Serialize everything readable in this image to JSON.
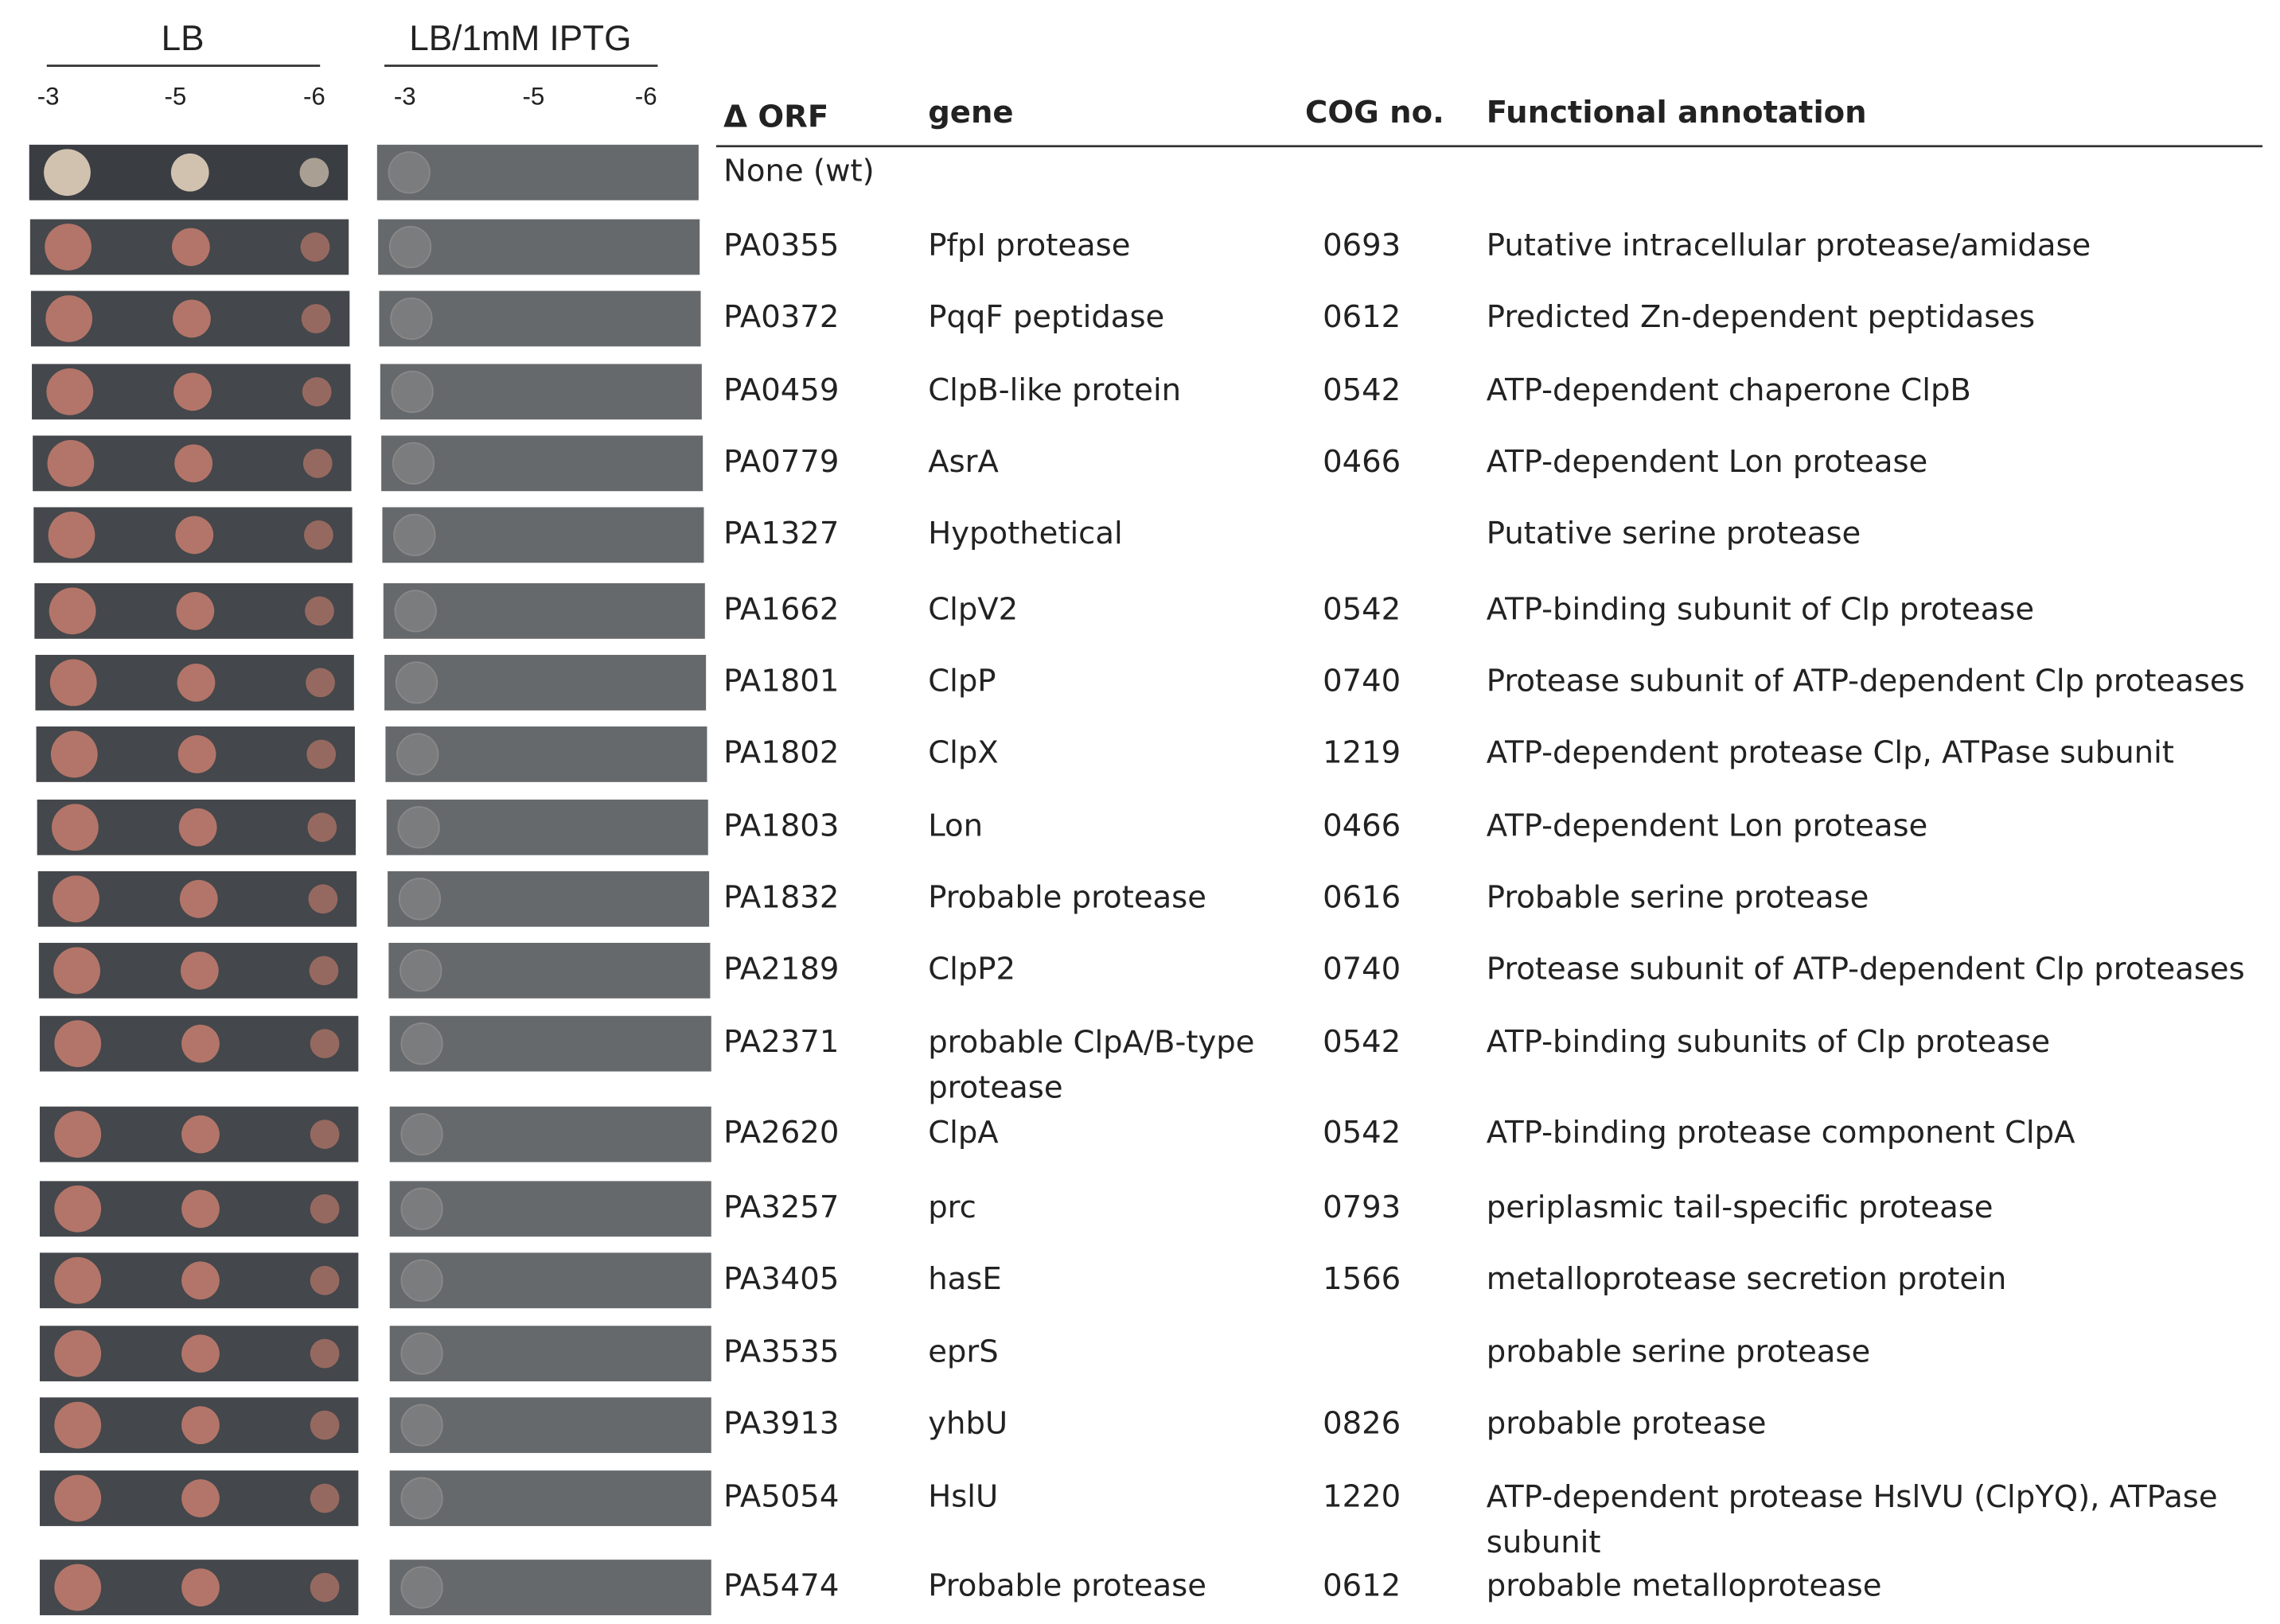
{
  "panels": {
    "lb": {
      "title": "LB",
      "dilutions": [
        "-3",
        "-5",
        "-6"
      ]
    },
    "iptg": {
      "title": "LB/1mM IPTG",
      "dilutions": [
        "-3",
        "-5",
        "-6"
      ]
    }
  },
  "table": {
    "columns": [
      "Δ ORF",
      "gene",
      "COG no.",
      "Functional annotation"
    ],
    "rows": [
      {
        "orf": "None (wt)"
      },
      {
        "orf": "PA0355",
        "gene": "PfpI protease",
        "cog": "0693",
        "annotation": "Putative intracellular protease/amidase"
      },
      {
        "orf": "PA0372",
        "gene": "PqqF peptidase",
        "cog": "0612",
        "annotation": "Predicted Zn-dependent peptidases"
      },
      {
        "orf": "PA0459",
        "gene": "ClpB-like protein",
        "cog": "0542",
        "annotation": "ATP-dependent chaperone ClpB"
      },
      {
        "orf": "PA0779",
        "gene": "AsrA",
        "cog": "0466",
        "annotation": "ATP-dependent Lon protease"
      },
      {
        "orf": "PA1327",
        "gene": "Hypothetical",
        "annotation": "Putative serine protease"
      },
      {
        "orf": "PA1662",
        "gene": "ClpV2",
        "cog": "0542",
        "annotation": "ATP-binding subunit of Clp protease"
      },
      {
        "orf": "PA1801",
        "gene": "ClpP",
        "cog": "0740",
        "annotation": "Protease subunit of ATP-dependent Clp proteases"
      },
      {
        "orf": "PA1802",
        "gene": "ClpX",
        "cog": "1219",
        "annotation": "ATP-dependent protease Clp, ATPase subunit"
      },
      {
        "orf": "PA1803",
        "gene": "Lon",
        "cog": "0466",
        "annotation": "ATP-dependent Lon protease"
      },
      {
        "orf": "PA1832",
        "gene": "Probable protease",
        "cog": "0616",
        "annotation": "Probable serine protease"
      },
      {
        "orf": "PA2189",
        "gene": "ClpP2",
        "cog": "0740",
        "annotation": "Protease subunit of ATP-dependent Clp proteases"
      },
      {
        "orf": "PA2371",
        "gene": "probable ClpA/B-type protease",
        "cog": "0542",
        "annotation": "ATP-binding subunits of Clp protease"
      },
      {
        "orf": "PA2620",
        "gene": "ClpA",
        "cog": "0542",
        "annotation": "ATP-binding protease component ClpA"
      },
      {
        "orf": "PA3257",
        "gene": "prc",
        "cog": "0793",
        "annotation": "periplasmic tail-specific protease"
      },
      {
        "orf": "PA3405",
        "gene": "hasE",
        "cog": "1566",
        "annotation": "metalloprotease secretion protein"
      },
      {
        "orf": "PA3535",
        "gene": "eprS",
        "annotation": "probable serine protease"
      },
      {
        "orf": "PA3913",
        "gene": "yhbU",
        "cog": "0826",
        "annotation": "probable protease"
      },
      {
        "orf": "PA5054",
        "gene": "HslU",
        "cog": "1220",
        "annotation": "ATP-dependent protease HslVU (ClpYQ), ATPase subunit"
      },
      {
        "orf": "PA5474",
        "gene": "Probable protease",
        "cog": "0612",
        "annotation": "probable metalloprotease"
      }
    ]
  }
}
